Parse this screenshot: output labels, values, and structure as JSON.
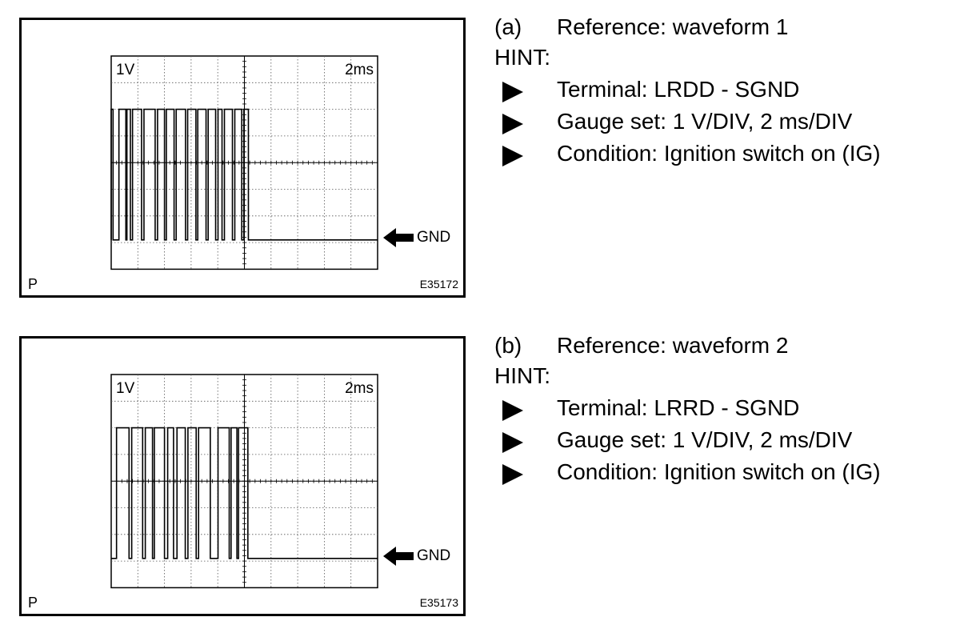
{
  "panels": [
    {
      "ref_tag": "(a)",
      "ref_text": "Reference: waveform 1",
      "hint": "HINT:",
      "bullets": [
        "Terminal: LRDD - SGND",
        "Gauge set: 1 V/DIV, 2 ms/DIV",
        "Condition: Ignition switch on (IG)"
      ],
      "scope": {
        "volt_label": "1V",
        "time_label": "2ms",
        "gnd_label": "GND",
        "corner_mark": "P",
        "figure_code": "E35172",
        "waveform_high": [
          [
            0.0,
            0.07
          ],
          [
            0.29,
            0.55
          ],
          [
            0.59,
            0.72
          ],
          [
            0.8,
            1.14
          ],
          [
            1.23,
            1.65
          ],
          [
            1.74,
            2.0
          ],
          [
            2.07,
            2.36
          ],
          [
            2.44,
            2.79
          ],
          [
            2.87,
            3.18
          ],
          [
            3.25,
            3.56
          ],
          [
            3.64,
            3.92
          ],
          [
            4.01,
            4.16
          ],
          [
            4.25,
            4.55
          ],
          [
            4.64,
            4.9
          ],
          [
            4.98,
            5.15
          ]
        ]
      }
    },
    {
      "ref_tag": "(b)",
      "ref_text": "Reference: waveform 2",
      "hint": "HINT:",
      "bullets": [
        "Terminal: LRRD - SGND",
        "Gauge set: 1 V/DIV, 2 ms/DIV",
        "Condition: Ignition switch on (IG)"
      ],
      "scope": {
        "volt_label": "1V",
        "time_label": "2ms",
        "gnd_label": "GND",
        "corner_mark": "P",
        "figure_code": "E35173",
        "waveform_high": [
          [
            0.2,
            0.67
          ],
          [
            0.77,
            1.18
          ],
          [
            1.28,
            1.55
          ],
          [
            1.62,
            2.0
          ],
          [
            2.12,
            2.34
          ],
          [
            2.47,
            2.78
          ],
          [
            2.88,
            3.19
          ],
          [
            3.28,
            3.72
          ],
          [
            4.01,
            4.43
          ],
          [
            4.5,
            4.72
          ],
          [
            4.78,
            5.13
          ]
        ]
      }
    }
  ]
}
